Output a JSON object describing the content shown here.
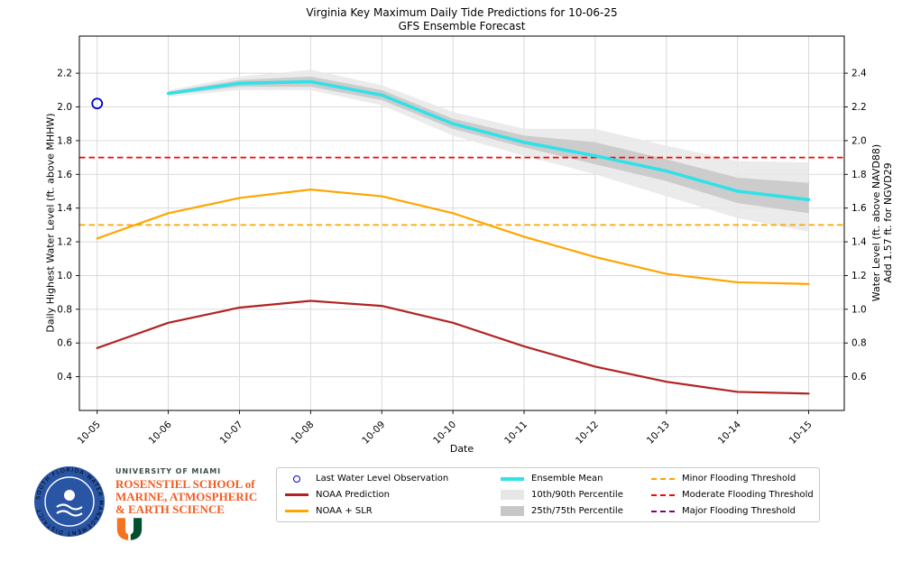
{
  "title": {
    "line1": "Virginia Key Maximum Daily Tide Predictions for 10-06-25",
    "line2": "GFS Ensemble Forecast"
  },
  "axes": {
    "xlabel": "Date",
    "ylabel_left": "Daily Highest Water Level (ft. above MHHW)",
    "ylabel_right_line1": "Water Level (ft. above NAVD88)",
    "ylabel_right_line2": "Add 1.57 ft. for NGVD29"
  },
  "chart_data": {
    "type": "line",
    "title": "Virginia Key Maximum Daily Tide Predictions for 10-06-25",
    "subtitle": "GFS Ensemble Forecast",
    "xlabel": "Date",
    "ylabel": "Daily Highest Water Level (ft. above MHHW)",
    "ylabel_right": "Water Level (ft. above NAVD88) Add 1.57 ft. for NGVD29",
    "grid": true,
    "legend_location": "bottom-center",
    "x_categories": [
      "10-05",
      "10-06",
      "10-07",
      "10-08",
      "10-09",
      "10-10",
      "10-11",
      "10-12",
      "10-13",
      "10-14",
      "10-15"
    ],
    "ylim_left": [
      0.2,
      2.42
    ],
    "yticks_left": [
      0.4,
      0.6,
      0.8,
      1.0,
      1.2,
      1.4,
      1.6,
      1.8,
      2.0,
      2.2
    ],
    "yticks_right": [
      0.6,
      0.8,
      1.0,
      1.2,
      1.4,
      1.6,
      1.8,
      2.0,
      2.2,
      2.4
    ],
    "right_axis_offset": 0.2,
    "observation": {
      "name": "Last Water Level Observation",
      "x": "10-05",
      "y": 2.02,
      "color": "#0000cc"
    },
    "series": [
      {
        "name": "NOAA Prediction",
        "color": "#b22222",
        "width": 2.2,
        "x": [
          "10-05",
          "10-06",
          "10-07",
          "10-08",
          "10-09",
          "10-10",
          "10-11",
          "10-12",
          "10-13",
          "10-14",
          "10-15"
        ],
        "values": [
          0.57,
          0.72,
          0.81,
          0.85,
          0.82,
          0.72,
          0.58,
          0.46,
          0.37,
          0.31,
          0.3
        ]
      },
      {
        "name": "NOAA + SLR",
        "color": "#ffa500",
        "width": 2.2,
        "x": [
          "10-05",
          "10-06",
          "10-07",
          "10-08",
          "10-09",
          "10-10",
          "10-11",
          "10-12",
          "10-13",
          "10-14",
          "10-15"
        ],
        "values": [
          1.22,
          1.37,
          1.46,
          1.51,
          1.47,
          1.37,
          1.23,
          1.11,
          1.01,
          0.96,
          0.95
        ]
      },
      {
        "name": "Ensemble Mean",
        "color": "#2fe1e8",
        "width": 3.5,
        "x": [
          "10-06",
          "10-07",
          "10-08",
          "10-09",
          "10-10",
          "10-11",
          "10-12",
          "10-13",
          "10-14",
          "10-15"
        ],
        "values": [
          2.08,
          2.14,
          2.15,
          2.07,
          1.9,
          1.79,
          1.71,
          1.62,
          1.5,
          1.45
        ]
      }
    ],
    "bands": [
      {
        "name": "10th/90th Percentile",
        "color": "#e7e7e7",
        "opacity": 0.85,
        "x": [
          "10-06",
          "10-07",
          "10-08",
          "10-09",
          "10-10",
          "10-11",
          "10-12",
          "10-13",
          "10-14",
          "10-15"
        ],
        "lower": [
          2.06,
          2.1,
          2.1,
          2.01,
          1.83,
          1.71,
          1.6,
          1.47,
          1.34,
          1.26
        ],
        "upper": [
          2.1,
          2.18,
          2.22,
          2.13,
          1.97,
          1.87,
          1.87,
          1.77,
          1.68,
          1.67
        ]
      },
      {
        "name": "25th/75th Percentile",
        "color": "#c7c7c7",
        "opacity": 0.85,
        "x": [
          "10-06",
          "10-07",
          "10-08",
          "10-09",
          "10-10",
          "10-11",
          "10-12",
          "10-13",
          "10-14",
          "10-15"
        ],
        "lower": [
          2.07,
          2.12,
          2.12,
          2.04,
          1.87,
          1.76,
          1.66,
          1.56,
          1.43,
          1.37
        ],
        "upper": [
          2.09,
          2.16,
          2.18,
          2.1,
          1.93,
          1.83,
          1.79,
          1.69,
          1.58,
          1.55
        ]
      }
    ],
    "thresholds": [
      {
        "name": "Minor Flooding Threshold",
        "value": 1.3,
        "color": "#ffa500",
        "style": "dashed"
      },
      {
        "name": "Moderate Flooding Threshold",
        "value": 1.7,
        "color": "#ff0000",
        "style": "dashed"
      },
      {
        "name": "Major Flooding Threshold",
        "value": null,
        "color": "#800080",
        "style": "dashed"
      }
    ]
  },
  "legend": {
    "columns": [
      [
        {
          "label": "Last Water Level Observation",
          "swatch": "marker",
          "color": "#0000cc"
        },
        {
          "label": "NOAA Prediction",
          "swatch": "line",
          "color": "#b22222"
        },
        {
          "label": "NOAA + SLR",
          "swatch": "line",
          "color": "#ffa500"
        }
      ],
      [
        {
          "label": "Ensemble Mean",
          "swatch": "thickline",
          "color": "#2fe1e8"
        },
        {
          "label": "10th/90th Percentile",
          "swatch": "patch",
          "color": "#e7e7e7"
        },
        {
          "label": "25th/75th Percentile",
          "swatch": "patch",
          "color": "#c7c7c7"
        }
      ],
      [
        {
          "label": "Minor Flooding Threshold",
          "swatch": "dash",
          "color": "#ffa500"
        },
        {
          "label": "Moderate Flooding Threshold",
          "swatch": "dash",
          "color": "#ff0000"
        },
        {
          "label": "Major Flooding Threshold",
          "swatch": "dash",
          "color": "#800080"
        }
      ]
    ]
  },
  "footer": {
    "sfwmd_logo_text": "SOUTH FLORIDA WATER MANAGEMENT DISTRICT",
    "university": "UNIVERSITY OF MIAMI",
    "school_line1": "ROSENSTIEL SCHOOL of",
    "school_line2": "MARINE, ATMOSPHERIC",
    "school_line3": "& EARTH SCIENCE",
    "colors": {
      "um_orange": "#f15c22",
      "um_green": "#005030",
      "sfwmd_blue": "#2a55a5"
    }
  }
}
